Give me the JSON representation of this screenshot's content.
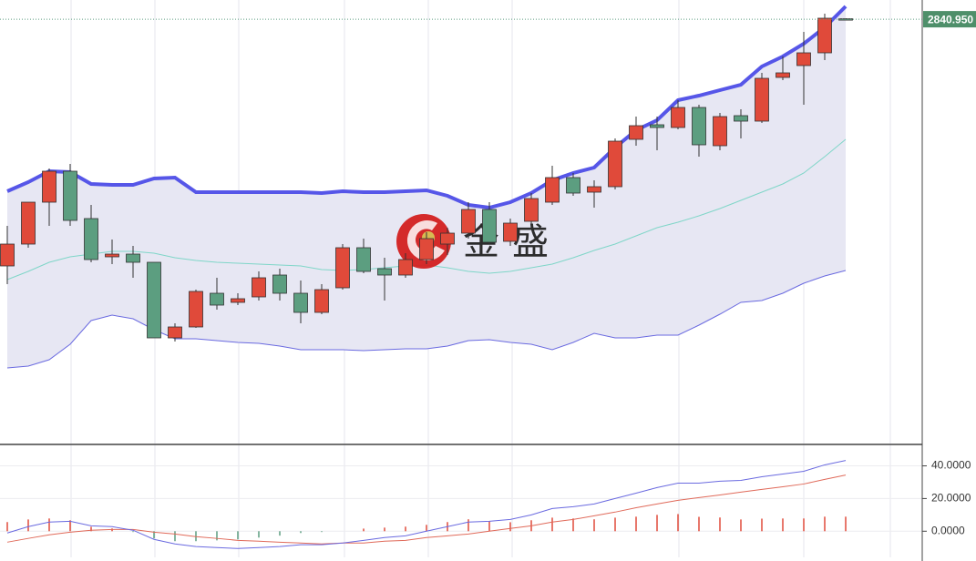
{
  "chart_data": [
    {
      "type": "candlestick",
      "watermark": "金盛",
      "ylim": [
        2607.5,
        2851.5
      ],
      "up_color": "#e04a3a",
      "down_color": "#5c9e80",
      "last_price": {
        "value": 2840.95,
        "label": "2840.950"
      },
      "open": [
        2705.5,
        2717.5,
        2740.5,
        2757.5,
        2731.5,
        2710.5,
        2712,
        2707.5,
        2666,
        2672,
        2690.5,
        2685.5,
        2688.5,
        2700.5,
        2690.5,
        2680,
        2693.5,
        2715.5,
        2704,
        2700.5,
        2709,
        2717.5,
        2723.5,
        2736.5,
        2719,
        2730,
        2740.5,
        2754,
        2746,
        2749,
        2775,
        2783,
        2781.5,
        2792.5,
        2771.5,
        2788,
        2785,
        2809,
        2815.5,
        2822.5,
        2841.2
      ],
      "high": [
        2727.5,
        2740.5,
        2759,
        2761.5,
        2739,
        2720,
        2716.5,
        2707.5,
        2674,
        2692.5,
        2699,
        2690.5,
        2702.5,
        2704,
        2697.5,
        2695.5,
        2717.5,
        2720.5,
        2710,
        2712.5,
        2724,
        2726.5,
        2740.5,
        2740.5,
        2731.5,
        2745.5,
        2760.5,
        2756.5,
        2752.5,
        2775.5,
        2787.5,
        2787.5,
        2796.5,
        2794,
        2789.5,
        2791.5,
        2811.5,
        2820.5,
        2834,
        2844,
        2841.5
      ],
      "low": [
        2695.5,
        2715.5,
        2727.5,
        2727.5,
        2707.5,
        2706.5,
        2699,
        2666,
        2664,
        2671.5,
        2681.5,
        2684,
        2686.5,
        2686.5,
        2674,
        2679,
        2692.5,
        2701.5,
        2686.5,
        2699,
        2706.5,
        2711.5,
        2720.5,
        2717.5,
        2716.5,
        2726.5,
        2739,
        2744,
        2737.5,
        2747.5,
        2771.5,
        2769,
        2780.5,
        2765.5,
        2769,
        2775.5,
        2784,
        2807.5,
        2794,
        2818.5,
        2840.8
      ],
      "close": [
        2717.5,
        2740.5,
        2757.5,
        2730.5,
        2709,
        2712,
        2707.5,
        2666,
        2672,
        2691.5,
        2684,
        2687.5,
        2699,
        2690.5,
        2680,
        2692.5,
        2715.5,
        2702.5,
        2700.5,
        2709,
        2720.5,
        2723.5,
        2736.5,
        2718.5,
        2729,
        2742.5,
        2754,
        2745.5,
        2749,
        2774,
        2782.5,
        2781.5,
        2792.5,
        2772,
        2787.5,
        2785,
        2808.5,
        2811.5,
        2822.5,
        2841.5,
        2840.95
      ],
      "upper_band": {
        "color": "#5656e8",
        "values": [
          2746.5,
          2751.5,
          2757.5,
          2757,
          2750.5,
          2750,
          2750,
          2753.5,
          2754,
          2746,
          2746,
          2746,
          2746,
          2746,
          2746,
          2745.5,
          2746.5,
          2746,
          2746,
          2746.5,
          2747,
          2744,
          2739,
          2737.5,
          2740.5,
          2745.5,
          2752.5,
          2756.5,
          2759.5,
          2770.5,
          2780,
          2785.5,
          2796.5,
          2799,
          2802,
          2805,
          2815,
          2820.5,
          2827.5,
          2836.5,
          2848
        ]
      },
      "middle_band": {
        "color": "#7fd6c8",
        "values": [
          2698,
          2702.5,
          2707.5,
          2710.5,
          2712,
          2713.5,
          2713.5,
          2712.5,
          2710,
          2708.5,
          2707.5,
          2707,
          2706.5,
          2706,
          2705.5,
          2703.5,
          2703,
          2703.5,
          2704.5,
          2705.5,
          2706,
          2704.5,
          2702.5,
          2701.5,
          2702.5,
          2704.5,
          2706.5,
          2710,
          2714,
          2717.5,
          2722,
          2726.5,
          2729.5,
          2733,
          2737,
          2741.5,
          2746,
          2750.5,
          2756.5,
          2765.5,
          2775
        ]
      },
      "lower_band": {
        "color": "#6a6ae0",
        "values": [
          2649.5,
          2650.5,
          2654,
          2662.5,
          2675.5,
          2678.5,
          2676.5,
          2670.5,
          2665.5,
          2665.5,
          2664.5,
          2663.5,
          2663,
          2661.5,
          2659.5,
          2659.5,
          2659.5,
          2659,
          2659.5,
          2660,
          2660,
          2661.5,
          2664.5,
          2665,
          2663.5,
          2662.5,
          2659.5,
          2663.5,
          2668.5,
          2666,
          2666,
          2667.5,
          2667.5,
          2673,
          2679,
          2685.5,
          2686.5,
          2690.5,
          2696,
          2700,
          2703
        ]
      },
      "band_fill": "#e7e7f3"
    },
    {
      "type": "macd",
      "ylim": [
        -16,
        52
      ],
      "yticks": [
        {
          "value": 0,
          "label": "0.0000"
        },
        {
          "value": 20,
          "label": "20.0000"
        },
        {
          "value": 40,
          "label": "40.0000"
        }
      ],
      "grid": true,
      "dif": {
        "color": "#6a6ae0",
        "values": [
          -1.1,
          2.8,
          5.6,
          6.1,
          3.3,
          2.8,
          0.6,
          -5,
          -7.8,
          -9.4,
          -10,
          -10.6,
          -10,
          -9.4,
          -8.3,
          -8.3,
          -7.2,
          -5.6,
          -3.9,
          -2.8,
          0,
          2.8,
          5.6,
          6.1,
          7.2,
          10,
          13.9,
          15,
          16.7,
          20,
          23.3,
          26.7,
          29.4,
          29.4,
          30.6,
          31.1,
          33.3,
          35,
          36.7,
          40.6,
          43.3
        ]
      },
      "dea": {
        "color": "#e06a5a",
        "values": [
          -6.7,
          -4.4,
          -2.2,
          -0.6,
          0.6,
          1.1,
          1.1,
          -0.6,
          -1.7,
          -3.3,
          -4.4,
          -5.6,
          -6.1,
          -6.7,
          -7.2,
          -7.8,
          -7.2,
          -7.2,
          -6.1,
          -5.6,
          -3.9,
          -2.8,
          -1.7,
          0,
          1.7,
          3.3,
          5.6,
          7.2,
          9.4,
          11.7,
          14.4,
          16.7,
          18.9,
          20.6,
          22.2,
          23.9,
          25.6,
          27.2,
          28.9,
          31.7,
          34.4
        ]
      },
      "histogram": {
        "up_color": "#e04a3a",
        "down_color": "#5c9e80",
        "values": [
          5.6,
          7.2,
          7.8,
          6.7,
          2.7,
          1.7,
          -0.5,
          -4.4,
          -6.1,
          -6.1,
          -5.6,
          -5,
          -3.9,
          -2.7,
          -1.1,
          -0.5,
          0,
          1.6,
          2.2,
          2.8,
          3.9,
          5.6,
          7.3,
          6.1,
          5.5,
          6.7,
          8.3,
          7.8,
          7.3,
          8.3,
          8.9,
          10,
          10.5,
          8.8,
          8.4,
          7.2,
          7.7,
          7.8,
          7.8,
          8.9,
          8.9
        ]
      }
    }
  ]
}
